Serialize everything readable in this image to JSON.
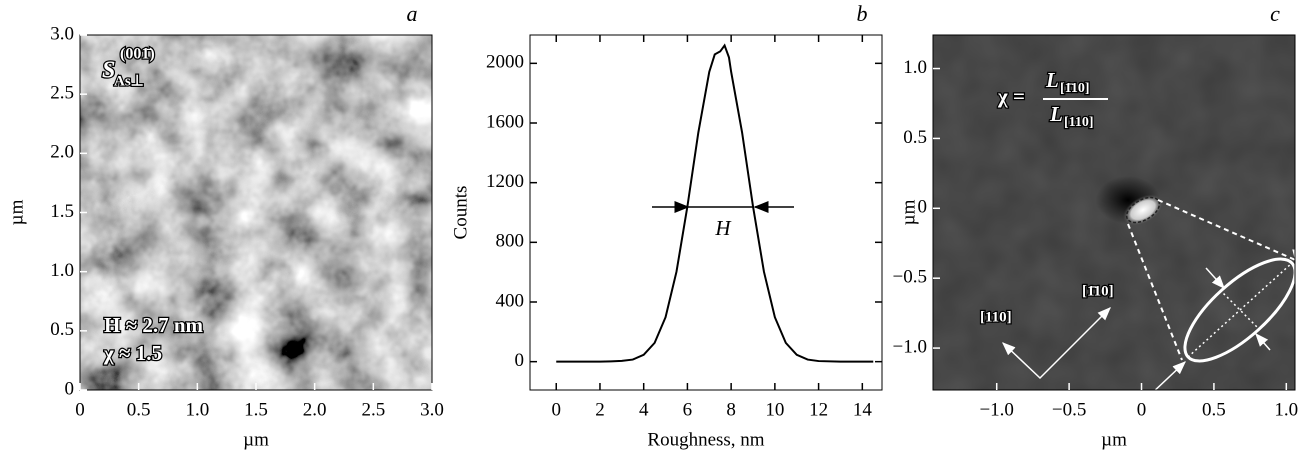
{
  "chart_data": [
    {
      "type": "image",
      "panel": "a",
      "xlabel": "µm",
      "ylabel": "µm",
      "xlim": [
        0,
        3
      ],
      "ylim": [
        0,
        3
      ],
      "xticks": [
        0,
        0.5,
        {
          "value": 1,
          "label": "1.0"
        },
        1.5,
        {
          "value": 2,
          "label": "2.0"
        },
        2.5,
        {
          "value": 3,
          "label": "3.0"
        }
      ],
      "yticks": [
        0,
        0.5,
        {
          "value": 1,
          "label": "1.0"
        },
        1.5,
        {
          "value": 2,
          "label": "2.0"
        },
        2.5,
        {
          "value": 3,
          "label": "3.0"
        }
      ],
      "annotations": [
        "S",
        "As⊥",
        "(001̄)",
        "H ≈ 2.7 nm",
        "χ ≈ 1.5"
      ]
    },
    {
      "type": "line",
      "panel": "b",
      "xlabel": "Roughness, nm",
      "ylabel": "Counts",
      "color": "#000000",
      "xlim": [
        -1.2,
        14.9
      ],
      "ylim": [
        -190,
        2190
      ],
      "xticks": [
        0,
        2,
        4,
        6,
        8,
        10,
        12,
        14
      ],
      "yticks": [
        0,
        400,
        800,
        1200,
        1600,
        2000
      ],
      "x": [
        0,
        0.5,
        1,
        1.5,
        2,
        2.5,
        3,
        3.5,
        4,
        4.5,
        5,
        5.5,
        6,
        6.5,
        7,
        7.25,
        7.5,
        7.7,
        7.9,
        8,
        8.5,
        9,
        9.5,
        10,
        10.5,
        11,
        11.5,
        12,
        13,
        14,
        14.5
      ],
      "values": [
        0,
        0,
        0,
        0,
        0,
        2,
        5,
        14,
        46,
        126,
        298,
        603,
        1041,
        1537,
        1943,
        2060,
        2080,
        2120,
        2040,
        1943,
        1537,
        1041,
        603,
        298,
        126,
        46,
        14,
        4,
        0,
        0,
        0
      ],
      "annotations": [
        "H"
      ]
    },
    {
      "type": "image",
      "panel": "c",
      "xlabel": "µm",
      "ylabel": "µm",
      "xlim": [
        -1.44,
        1.06
      ],
      "ylim": [
        -1.3,
        1.24
      ],
      "xticks": [
        {
          "value": -1,
          "label": "−1.0"
        },
        {
          "value": -0.5,
          "label": "−0.5"
        },
        0,
        0.5,
        {
          "value": 1,
          "label": "1.0"
        }
      ],
      "yticks": [
        {
          "value": -1,
          "label": "−1.0"
        },
        {
          "value": -0.5,
          "label": "−0.5"
        },
        0,
        0.5,
        {
          "value": 1,
          "label": "1.0"
        }
      ],
      "annotations": [
        "χ =",
        "L",
        "[1̄10]",
        "L",
        "[110]",
        "[110]",
        "[1̄10]"
      ]
    }
  ]
}
